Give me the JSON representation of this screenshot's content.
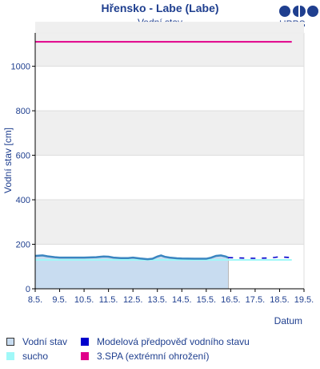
{
  "header": {
    "title": "Hřensko - Labe (Labe)",
    "subtitle": "Vodní stav",
    "logo_text": "HPPS"
  },
  "colors": {
    "text": "#1f3f8f",
    "observed": "#3a85c0",
    "observed_fill": "#c8dcf0",
    "forecast": "#0000cc",
    "sucho": "#a0f8f8",
    "spa3": "#e0008a",
    "band": "#efefef"
  },
  "chart_data": {
    "type": "area",
    "title": "Hřensko - Labe (Labe)",
    "subtitle": "Vodní stav",
    "ylabel": "Vodní stav [cm]",
    "xlabel": "Datum",
    "ylim": [
      0,
      1150
    ],
    "yticks": [
      0,
      200,
      400,
      600,
      800,
      1000
    ],
    "xlim": [
      0,
      11
    ],
    "xtick_labels": [
      "8.5.",
      "9.5.",
      "10.5.",
      "11.5.",
      "12.5.",
      "13.5.",
      "14.5.",
      "15.5.",
      "16.5.",
      "17.5.",
      "18.5.",
      "19.5."
    ],
    "series": [
      {
        "name": "Vodní stav",
        "type": "area",
        "x": [
          0.0,
          0.3,
          0.5,
          0.8,
          1.0,
          1.5,
          2.0,
          2.5,
          2.8,
          3.0,
          3.2,
          3.5,
          3.8,
          4.0,
          4.3,
          4.6,
          4.8,
          5.0,
          5.15,
          5.3,
          5.5,
          5.8,
          6.0,
          6.5,
          7.0,
          7.2,
          7.4,
          7.6,
          7.8,
          7.9
        ],
        "y": [
          148,
          150,
          146,
          142,
          140,
          140,
          140,
          142,
          145,
          144,
          140,
          138,
          138,
          140,
          136,
          133,
          135,
          145,
          150,
          144,
          140,
          137,
          136,
          135,
          135,
          140,
          148,
          150,
          145,
          140
        ]
      },
      {
        "name": "Modelová předpověď vodního stavu",
        "type": "line",
        "x": [
          7.9,
          8.5,
          9.0,
          9.5,
          9.8,
          10.0,
          10.2,
          10.5
        ],
        "y": [
          140,
          138,
          137,
          138,
          141,
          144,
          142,
          140
        ]
      },
      {
        "name": "sucho",
        "type": "line",
        "value": 130,
        "x_range": [
          0,
          10.5
        ]
      },
      {
        "name": "3.SPA (extrémní ohrožení)",
        "type": "line",
        "value": 1110,
        "x_range": [
          0,
          10.5
        ]
      }
    ],
    "grid": "alternating horizontal bands",
    "legend": "bottom, two columns"
  }
}
